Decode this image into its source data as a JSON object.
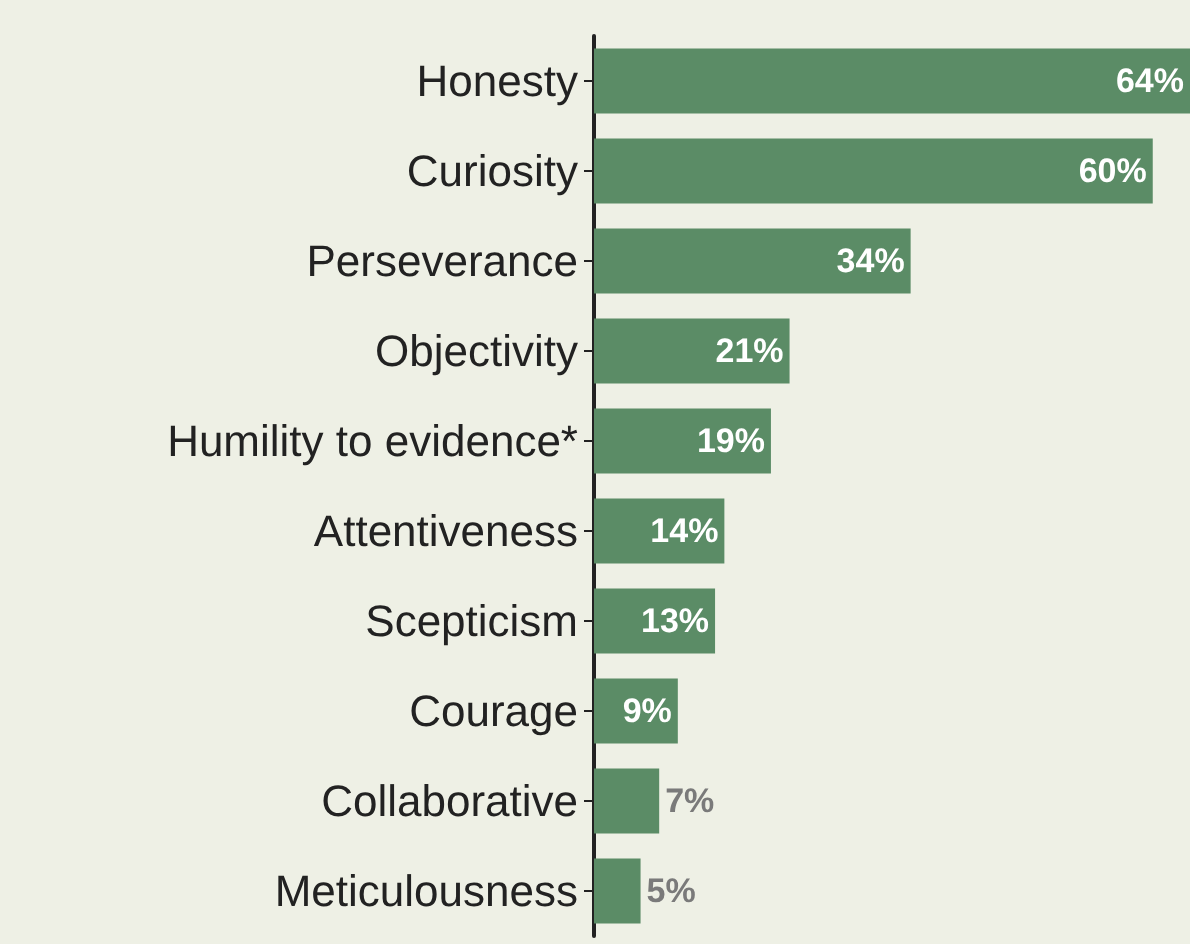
{
  "chart_data": {
    "type": "bar",
    "orientation": "horizontal",
    "categories": [
      "Honesty",
      "Curiosity",
      "Perseverance",
      "Objectivity",
      "Humility to evidence*",
      "Attentiveness",
      "Scepticism",
      "Courage",
      "Collaborative",
      "Meticulousness"
    ],
    "values": [
      64,
      60,
      34,
      21,
      19,
      14,
      13,
      9,
      7,
      5
    ],
    "value_labels": [
      "64%",
      "60%",
      "34%",
      "21%",
      "19%",
      "14%",
      "13%",
      "9%",
      "7%",
      "5%"
    ],
    "color": "#5b8c66"
  }
}
